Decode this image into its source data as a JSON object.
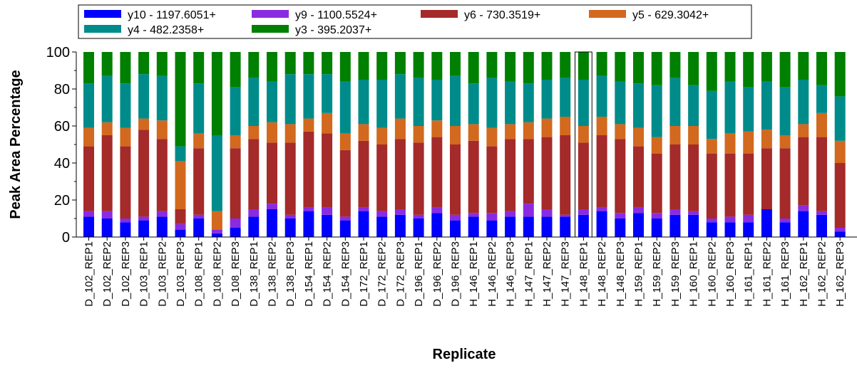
{
  "chart_data": {
    "type": "bar",
    "stacked": true,
    "title": "",
    "xlabel": "Replicate",
    "ylabel": "Peak Area Percentage",
    "ylim": [
      0,
      100
    ],
    "yticks": [
      "0",
      "20",
      "40",
      "60",
      "80",
      "100"
    ],
    "legend_position": "top",
    "highlighted_category": "H_148_REP1",
    "categories": [
      "D_102_REP1",
      "D_102_REP2",
      "D_102_REP3",
      "D_103_REP1",
      "D_103_REP2",
      "D_103_REP3",
      "D_108_REP1",
      "D_108_REP2",
      "D_108_REP3",
      "D_138_REP1",
      "D_138_REP2",
      "D_138_REP3",
      "D_154_REP1",
      "D_154_REP2",
      "D_154_REP3",
      "D_172_REP1",
      "D_172_REP2",
      "D_172_REP3",
      "D_196_REP1",
      "D_196_REP2",
      "D_196_REP3",
      "H_146_REP1",
      "H_146_REP2",
      "H_146_REP3",
      "H_147_REP1",
      "H_147_REP2",
      "H_147_REP3",
      "H_148_REP1",
      "H_148_REP2",
      "H_148_REP3",
      "H_159_REP1",
      "H_159_REP2",
      "H_159_REP3",
      "H_160_REP1",
      "H_160_REP2",
      "H_160_REP3",
      "H_161_REP1",
      "H_161_REP2",
      "H_161_REP3",
      "H_162_REP1",
      "H_162_REP2",
      "H_162_REP3"
    ],
    "series": [
      {
        "name": "y10 - 1197.6051+",
        "color": "#0000ff",
        "values": [
          11,
          10,
          8,
          9,
          11,
          4,
          10,
          2,
          5,
          11,
          15,
          10,
          14,
          12,
          9,
          14,
          11,
          12,
          10,
          13,
          9,
          11,
          9,
          11,
          11,
          11,
          11,
          12,
          14,
          10,
          13,
          10,
          12,
          12,
          8,
          8,
          8,
          15,
          8,
          14,
          12,
          3
        ]
      },
      {
        "name": "y9 - 1100.5524+",
        "color": "#8a2be2",
        "values": [
          3,
          4,
          2,
          2,
          3,
          3,
          2,
          2,
          5,
          4,
          3,
          2,
          2,
          4,
          2,
          2,
          3,
          3,
          2,
          3,
          3,
          2,
          4,
          3,
          7,
          4,
          1,
          3,
          2,
          3,
          3,
          3,
          3,
          2,
          2,
          3,
          4,
          0,
          2,
          3,
          2,
          2
        ]
      },
      {
        "name": "y6 - 730.3519+",
        "color": "#a52a2a",
        "values": [
          35,
          41,
          39,
          47,
          39,
          8,
          36,
          0,
          38,
          38,
          33,
          39,
          41,
          40,
          36,
          36,
          36,
          38,
          39,
          38,
          38,
          39,
          36,
          39,
          35,
          39,
          43,
          36,
          39,
          40,
          33,
          32,
          35,
          36,
          35,
          34,
          33,
          33,
          38,
          37,
          40,
          35
        ]
      },
      {
        "name": "y5 - 629.3042+",
        "color": "#d2691e",
        "values": [
          10,
          7,
          10,
          6,
          10,
          26,
          8,
          10,
          7,
          7,
          11,
          10,
          7,
          11,
          9,
          9,
          9,
          11,
          9,
          9,
          10,
          9,
          10,
          8,
          9,
          10,
          10,
          9,
          10,
          8,
          10,
          9,
          10,
          10,
          8,
          11,
          12,
          10,
          7,
          7,
          13,
          12
        ]
      },
      {
        "name": "y4 - 482.2358+",
        "color": "#008b8b",
        "values": [
          24,
          25,
          24,
          24,
          24,
          8,
          27,
          41,
          26,
          26,
          22,
          27,
          24,
          21,
          28,
          24,
          26,
          24,
          26,
          22,
          27,
          22,
          27,
          23,
          21,
          21,
          21,
          25,
          22,
          23,
          24,
          28,
          26,
          22,
          26,
          28,
          24,
          26,
          26,
          24,
          15,
          24
        ]
      },
      {
        "name": "y3 - 395.2037+",
        "color": "#008000",
        "values": [
          17,
          13,
          17,
          12,
          13,
          51,
          17,
          45,
          19,
          14,
          16,
          12,
          12,
          12,
          16,
          15,
          15,
          12,
          14,
          15,
          13,
          17,
          14,
          16,
          17,
          15,
          14,
          15,
          13,
          16,
          17,
          18,
          14,
          18,
          21,
          16,
          19,
          16,
          19,
          15,
          18,
          24
        ]
      }
    ]
  }
}
